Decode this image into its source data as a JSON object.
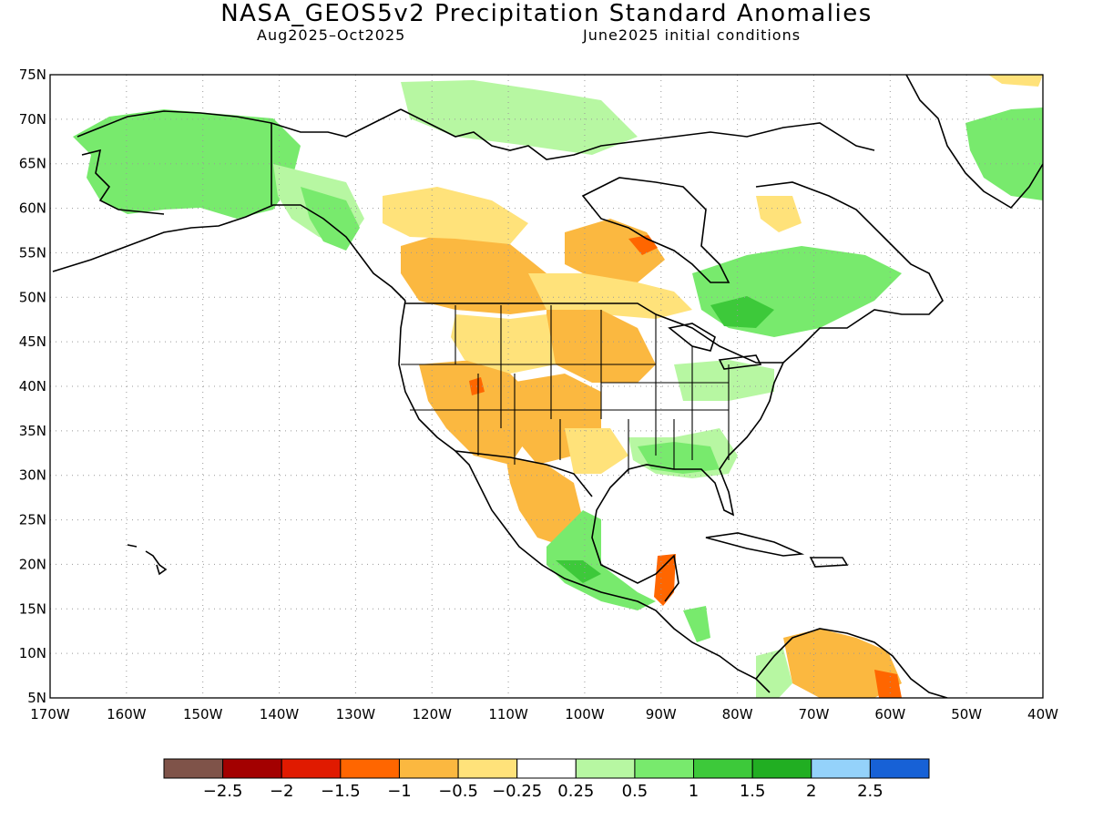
{
  "title": "NASA_GEOS5v2 Precipitation Standard Anomalies",
  "subtitle_period": "Aug2025–Oct2025",
  "subtitle_init": "June2025 initial conditions",
  "map": {
    "lon_range": [
      -170,
      -40
    ],
    "lat_range": [
      5,
      75
    ],
    "lat_ticks": [
      "5N",
      "10N",
      "15N",
      "20N",
      "25N",
      "30N",
      "35N",
      "40N",
      "45N",
      "50N",
      "55N",
      "60N",
      "65N",
      "70N",
      "75N"
    ],
    "lon_ticks": [
      "170W",
      "160W",
      "150W",
      "140W",
      "130W",
      "120W",
      "110W",
      "100W",
      "90W",
      "80W",
      "70W",
      "60W",
      "50W",
      "40W"
    ],
    "grid": "dotted",
    "coastline_color": "#000000"
  },
  "colorbar": {
    "colors": [
      "#7f5349",
      "#a30000",
      "#e01a00",
      "#ff6600",
      "#fbb840",
      "#ffe27a",
      "#ffffff",
      "#b7f7a2",
      "#78ea6d",
      "#3dc93a",
      "#21ae22",
      "#94d2fa",
      "#1761d6"
    ],
    "labels": [
      "−2.5",
      "−2",
      "−1.5",
      "−1",
      "−0.5",
      "−0.25",
      "0.25",
      "0.5",
      "1",
      "1.5",
      "2",
      "2.5"
    ]
  },
  "anomaly_colors": {
    "moderate_dry": "#fbb840",
    "slight_dry": "#ffe27a",
    "strong_dry": "#ff6600",
    "very_strong_dry": "#e01a00",
    "slight_wet": "#b7f7a2",
    "moderate_wet": "#78ea6d",
    "strong_wet": "#3dc93a"
  }
}
